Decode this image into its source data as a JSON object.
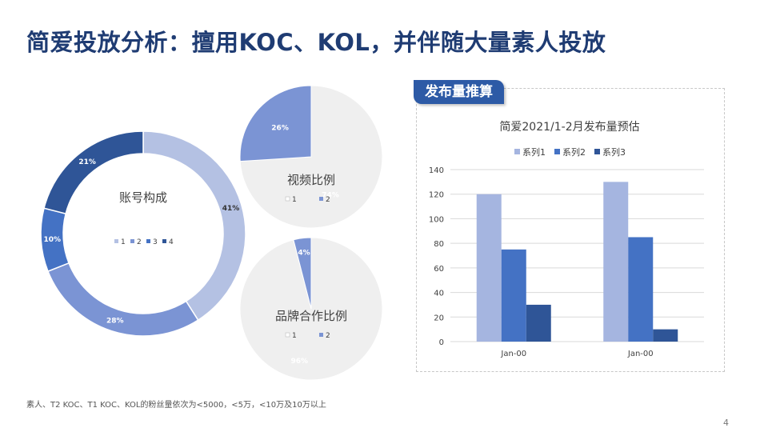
{
  "title": "简爱投放分析：擅用KOC、KOL，并伴随大量素人投放",
  "footnote": "素人、T2 KOC、T1 KOC、KOL的粉丝量依次为<5000，<5万，<10万及10万以上",
  "page_number": "4",
  "section_tab": "发布量推算",
  "colors": {
    "c1": "#b4c1e3",
    "c2": "#7b94d4",
    "c3": "#4472c4",
    "c4": "#2f5597",
    "bar1": "#a5b5e0",
    "bar2": "#4472c4",
    "bar3": "#2f5597",
    "grey": "#efefef",
    "title": "#1f3c73"
  },
  "chart_data": [
    {
      "type": "pie",
      "title": "账号构成",
      "variant": "donut",
      "categories": [
        "1",
        "2",
        "3",
        "4"
      ],
      "values": [
        41,
        28,
        10,
        21
      ],
      "labels": [
        "41%",
        "28%",
        "10%",
        "21%"
      ]
    },
    {
      "type": "pie",
      "title": "视频比例",
      "categories": [
        "1",
        "2"
      ],
      "values": [
        74,
        26
      ],
      "labels": [
        "74%",
        "26%"
      ]
    },
    {
      "type": "pie",
      "title": "品牌合作比例",
      "categories": [
        "1",
        "2"
      ],
      "values": [
        96,
        4
      ],
      "labels": [
        "96%",
        "4%"
      ]
    },
    {
      "type": "bar",
      "title": "简爱2021/1-2月发布量预估",
      "categories": [
        "Jan-00",
        "Jan-00"
      ],
      "series": [
        {
          "name": "系列1",
          "values": [
            120,
            130
          ]
        },
        {
          "name": "系列2",
          "values": [
            75,
            85
          ]
        },
        {
          "name": "系列3",
          "values": [
            30,
            10
          ]
        }
      ],
      "ylim": [
        0,
        140
      ],
      "yticks": [
        "0",
        "20",
        "40",
        "60",
        "80",
        "100",
        "120",
        "140"
      ],
      "grid": true,
      "legend": "top"
    }
  ]
}
